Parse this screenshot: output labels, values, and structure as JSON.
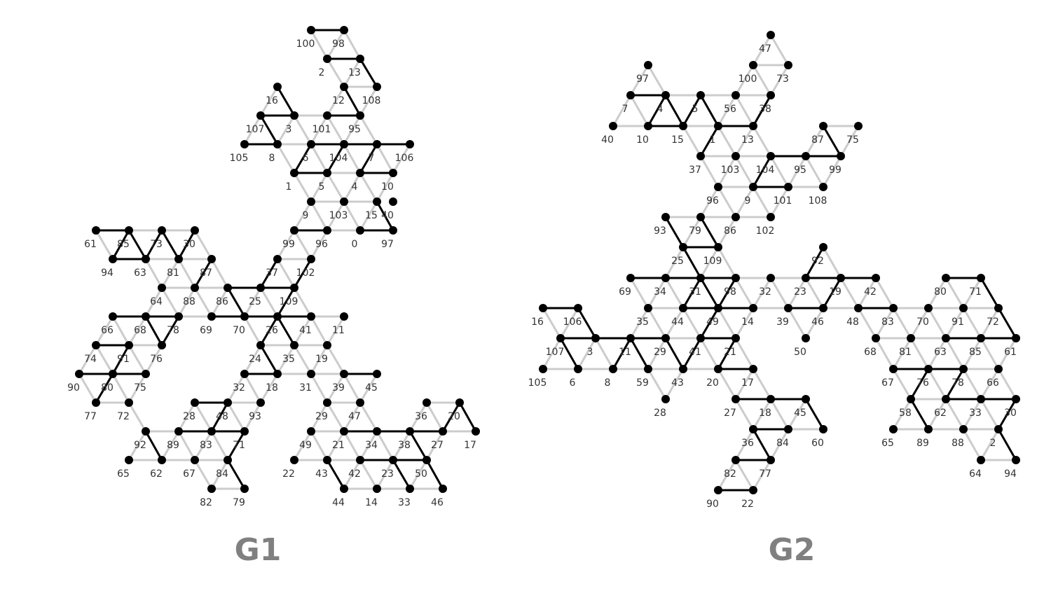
{
  "graphs": [
    {
      "title": "G1",
      "nodes": [
        "100",
        "98",
        "2",
        "13",
        "12",
        "108",
        "16",
        "107",
        "3",
        "101",
        "95",
        "105",
        "8",
        "6",
        "104",
        "7",
        "106",
        "1",
        "5",
        "4",
        "10",
        "9",
        "103",
        "15",
        "40",
        "0",
        "97",
        "99",
        "96",
        "37",
        "102",
        "61",
        "85",
        "73",
        "30",
        "94",
        "63",
        "81",
        "87",
        "64",
        "88",
        "86",
        "25",
        "109",
        "66",
        "68",
        "78",
        "69",
        "70",
        "26",
        "41",
        "11",
        "74",
        "91",
        "76",
        "24",
        "35",
        "19",
        "90",
        "80",
        "75",
        "77",
        "72",
        "32",
        "18",
        "31",
        "39",
        "45",
        "28",
        "48",
        "93",
        "29",
        "47",
        "36",
        "20",
        "92",
        "89",
        "83",
        "71",
        "49",
        "21",
        "34",
        "38",
        "27",
        "17",
        "65",
        "62",
        "67",
        "84",
        "22",
        "43",
        "42",
        "23",
        "50",
        "82",
        "79",
        "44",
        "14",
        "33",
        "46"
      ]
    },
    {
      "title": "G2",
      "nodes": [
        "47",
        "100",
        "73",
        "97",
        "38",
        "7",
        "4",
        "5",
        "56",
        "40",
        "10",
        "15",
        "1",
        "13",
        "87",
        "75",
        "37",
        "103",
        "104",
        "95",
        "99",
        "96",
        "9",
        "101",
        "108",
        "93",
        "79",
        "86",
        "102",
        "25",
        "109",
        "92",
        "69",
        "34",
        "31",
        "98",
        "32",
        "23",
        "19",
        "42",
        "80",
        "71",
        "16",
        "106",
        "44",
        "49",
        "14",
        "39",
        "46",
        "48",
        "83",
        "70",
        "91",
        "72",
        "35",
        "107",
        "3",
        "11",
        "29",
        "41",
        "21",
        "50",
        "68",
        "81",
        "63",
        "85",
        "61",
        "105",
        "6",
        "8",
        "59",
        "43",
        "20",
        "17",
        "67",
        "76",
        "78",
        "66",
        "28",
        "27",
        "18",
        "45",
        "58",
        "62",
        "33",
        "30",
        "36",
        "84",
        "60",
        "65",
        "89",
        "88",
        "2",
        "82",
        "77",
        "64",
        "94",
        "90",
        "22"
      ]
    }
  ]
}
